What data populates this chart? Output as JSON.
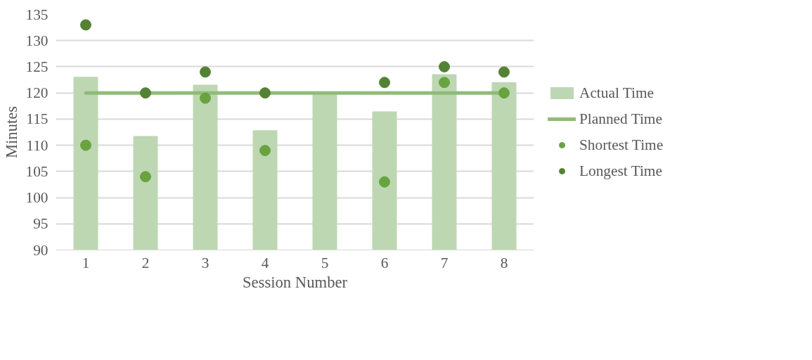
{
  "chart_data": {
    "type": "bar",
    "xlabel": "Session Number",
    "ylabel": "Minutes",
    "categories": [
      "1",
      "2",
      "3",
      "4",
      "5",
      "6",
      "7",
      "8"
    ],
    "series": [
      {
        "name": "Actual Time",
        "color": "#bdd7b3",
        "values": [
          123,
          111.7,
          121.5,
          112.8,
          120,
          116.4,
          123.5,
          122
        ]
      },
      {
        "name": "Planned Time",
        "type": "line",
        "marker": "none",
        "color": "#8fbc78",
        "values": [
          120,
          120,
          120,
          120,
          120,
          120,
          120,
          120
        ]
      },
      {
        "name": "Shortest Time",
        "type": "scatter",
        "marker": "circle",
        "color": "#69a340",
        "values": [
          110,
          104,
          119,
          109,
          null,
          103,
          122,
          120
        ]
      },
      {
        "name": "Longest Time",
        "type": "scatter",
        "marker": "circle",
        "color": "#548235",
        "values": [
          133,
          120,
          124,
          120,
          null,
          122,
          125,
          124
        ]
      }
    ],
    "ylim": [
      90,
      135
    ],
    "yticks": [
      90,
      95,
      100,
      105,
      110,
      115,
      120,
      125,
      130,
      135
    ],
    "grid": "y",
    "legend": "right"
  }
}
